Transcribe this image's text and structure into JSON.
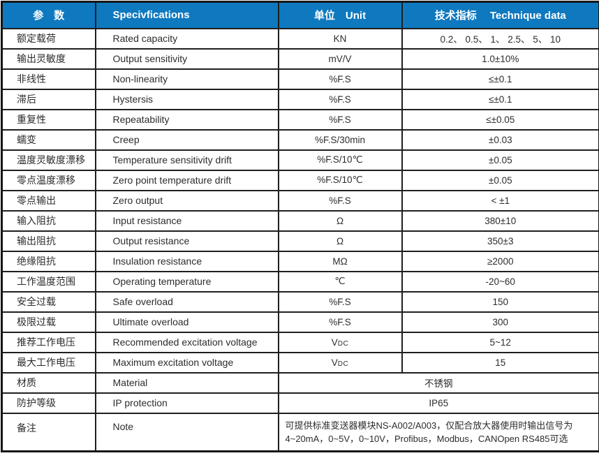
{
  "colors": {
    "header_bg": "#0f79c0",
    "header_text": "#ffffff",
    "border": "#1f1f1f",
    "body_text": "#2d2c2c"
  },
  "header": {
    "param": "参　数",
    "spec": "Specivfications",
    "unit": "单位　Unit",
    "data": "技术指标　 Technique data"
  },
  "rows": [
    {
      "cn": "额定载荷",
      "en": "Rated capacity",
      "unit": "KN",
      "value": "0.2、 0.5、 1、 2.5、 5、 10"
    },
    {
      "cn": "输出灵敏度",
      "en": "Output sensitivity",
      "unit": "mV/V",
      "value": "1.0±10%"
    },
    {
      "cn": "非线性",
      "en": "Non-linearity",
      "unit": "%F.S",
      "value": "≤±0.1"
    },
    {
      "cn": "滞后",
      "en": "Hystersis",
      "unit": "%F.S",
      "value": "≤±0.1"
    },
    {
      "cn": "重复性",
      "en": "Repeatability",
      "unit": "%F.S",
      "value": "≤±0.05"
    },
    {
      "cn": "蠕变",
      "en": "Creep",
      "unit": "%F.S/30min",
      "value": "±0.03"
    },
    {
      "cn": "温度灵敏度漂移",
      "en": "Temperature sensitivity drift",
      "unit": "%F.S/10℃",
      "value": "±0.05"
    },
    {
      "cn": "零点温度漂移",
      "en": "Zero point temperature drift",
      "unit": "%F.S/10℃",
      "value": "±0.05"
    },
    {
      "cn": "零点输出",
      "en": "Zero output",
      "unit": "%F.S",
      "value": "< ±1"
    },
    {
      "cn": "输入阻抗",
      "en": "Input resistance",
      "unit": "Ω",
      "value": "380±10"
    },
    {
      "cn": "输出阻抗",
      "en": "Output resistance",
      "unit": "Ω",
      "value": "350±3"
    },
    {
      "cn": "绝缘阻抗",
      "en": "Insulation resistance",
      "unit": "MΩ",
      "value": "≥2000"
    },
    {
      "cn": "工作温度范围",
      "en": "Operating temperature",
      "unit": "℃",
      "value": "-20~60"
    },
    {
      "cn": "安全过载",
      "en": "Safe overload",
      "unit": "%F.S",
      "value": "150"
    },
    {
      "cn": "极限过载",
      "en": "Ultimate overload",
      "unit": "%F.S",
      "value": "300"
    },
    {
      "cn": "推荐工作电压",
      "en": "Recommended excitation voltage",
      "unit": "V",
      "unit_sub": "DC",
      "value": "5~12"
    },
    {
      "cn": "最大工作电压",
      "en": "Maximum excitation voltage",
      "unit": "V",
      "unit_sub": "DC",
      "value": "15"
    },
    {
      "cn": "材质",
      "en": "Material",
      "merged": true,
      "value": "不锈钢"
    },
    {
      "cn": "防护等级",
      "en": "IP protection",
      "merged": true,
      "value": "IP65"
    },
    {
      "cn": "备注",
      "en": "Note",
      "merged": true,
      "note": true,
      "value_lines": [
        "可提供标准变送器模块NS-A002/A003，仅配合放大器使用时输出信号为",
        "4~20mA，0~5V，0~10V，Profibus，Modbus，CANOpen RS485可选"
      ]
    }
  ]
}
